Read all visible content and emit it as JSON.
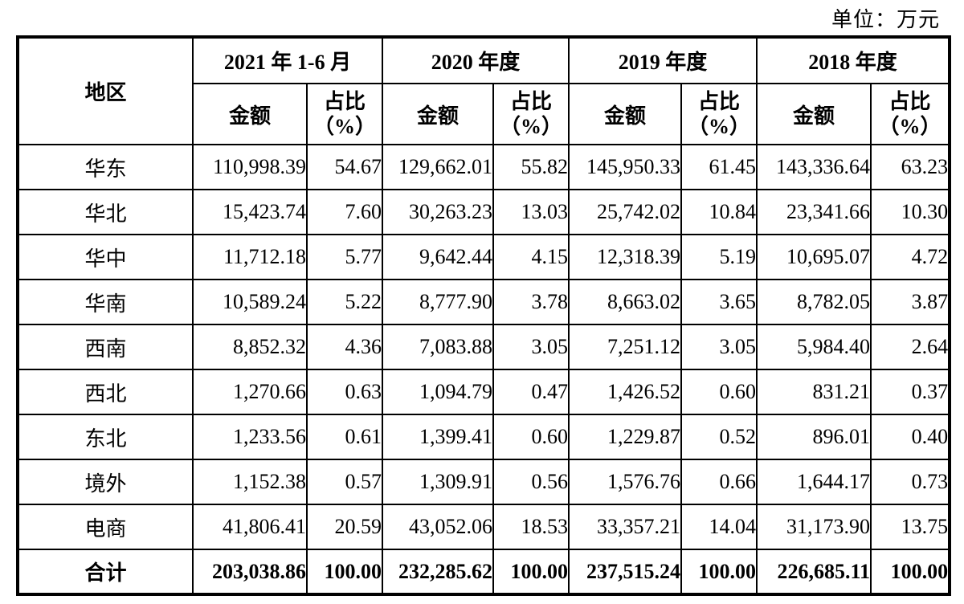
{
  "unit_label": "单位：万元",
  "table": {
    "region_header": "地区",
    "amount_header": "金额",
    "ratio_header_line1": "占比",
    "ratio_header_line2": "（%）",
    "periods": [
      "2021 年 1-6 月",
      "2020 年度",
      "2019 年度",
      "2018 年度"
    ],
    "rows": [
      {
        "region": "华东",
        "values": [
          "110,998.39",
          "54.67",
          "129,662.01",
          "55.82",
          "145,950.33",
          "61.45",
          "143,336.64",
          "63.23"
        ]
      },
      {
        "region": "华北",
        "values": [
          "15,423.74",
          "7.60",
          "30,263.23",
          "13.03",
          "25,742.02",
          "10.84",
          "23,341.66",
          "10.30"
        ]
      },
      {
        "region": "华中",
        "values": [
          "11,712.18",
          "5.77",
          "9,642.44",
          "4.15",
          "12,318.39",
          "5.19",
          "10,695.07",
          "4.72"
        ]
      },
      {
        "region": "华南",
        "values": [
          "10,589.24",
          "5.22",
          "8,777.90",
          "3.78",
          "8,663.02",
          "3.65",
          "8,782.05",
          "3.87"
        ]
      },
      {
        "region": "西南",
        "values": [
          "8,852.32",
          "4.36",
          "7,083.88",
          "3.05",
          "7,251.12",
          "3.05",
          "5,984.40",
          "2.64"
        ]
      },
      {
        "region": "西北",
        "values": [
          "1,270.66",
          "0.63",
          "1,094.79",
          "0.47",
          "1,426.52",
          "0.60",
          "831.21",
          "0.37"
        ]
      },
      {
        "region": "东北",
        "values": [
          "1,233.56",
          "0.61",
          "1,399.41",
          "0.60",
          "1,229.87",
          "0.52",
          "896.01",
          "0.40"
        ]
      },
      {
        "region": "境外",
        "values": [
          "1,152.38",
          "0.57",
          "1,309.91",
          "0.56",
          "1,576.76",
          "0.66",
          "1,644.17",
          "0.73"
        ]
      },
      {
        "region": "电商",
        "values": [
          "41,806.41",
          "20.59",
          "43,052.06",
          "18.53",
          "33,357.21",
          "14.04",
          "31,173.90",
          "13.75"
        ]
      }
    ],
    "total_row": {
      "region": "合计",
      "values": [
        "203,038.86",
        "100.00",
        "232,285.62",
        "100.00",
        "237,515.24",
        "100.00",
        "226,685.11",
        "100.00"
      ]
    }
  }
}
